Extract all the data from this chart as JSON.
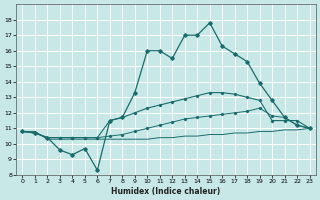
{
  "xlabel": "Humidex (Indice chaleur)",
  "bg_color": "#c8e8e8",
  "line_color": "#1a6b6b",
  "grid_color": "#b0d4d4",
  "xlim": [
    -0.5,
    23.5
  ],
  "ylim": [
    8,
    19
  ],
  "xticks": [
    0,
    1,
    2,
    3,
    4,
    5,
    6,
    7,
    8,
    9,
    10,
    11,
    12,
    13,
    14,
    15,
    16,
    17,
    18,
    19,
    20,
    21,
    22,
    23
  ],
  "yticks": [
    8,
    9,
    10,
    11,
    12,
    13,
    14,
    15,
    16,
    17,
    18
  ],
  "line_main_y": [
    10.8,
    10.7,
    10.4,
    9.6,
    9.3,
    9.7,
    8.3,
    11.5,
    11.7,
    13.3,
    16.0,
    16.0,
    15.5,
    17.0,
    17.0,
    17.8,
    16.3,
    15.8,
    15.3,
    13.9,
    12.8,
    11.7,
    11.2,
    11.0
  ],
  "line_smooth_y": [
    10.8,
    10.7,
    10.4,
    10.4,
    10.4,
    10.4,
    10.4,
    11.5,
    11.7,
    12.0,
    12.3,
    12.5,
    12.7,
    12.9,
    13.1,
    13.3,
    13.3,
    13.2,
    13.0,
    12.8,
    11.5,
    11.5,
    11.5,
    11.0
  ],
  "line_rise_y": [
    10.8,
    10.7,
    10.4,
    10.4,
    10.4,
    10.4,
    10.4,
    10.5,
    10.6,
    10.8,
    11.0,
    11.2,
    11.4,
    11.6,
    11.7,
    11.8,
    11.9,
    12.0,
    12.1,
    12.3,
    11.8,
    11.7,
    11.2,
    11.0
  ],
  "line_flat_y": [
    10.8,
    10.8,
    10.3,
    10.3,
    10.3,
    10.3,
    10.3,
    10.3,
    10.3,
    10.3,
    10.3,
    10.4,
    10.4,
    10.5,
    10.5,
    10.6,
    10.6,
    10.7,
    10.7,
    10.8,
    10.8,
    10.9,
    10.9,
    11.0
  ]
}
